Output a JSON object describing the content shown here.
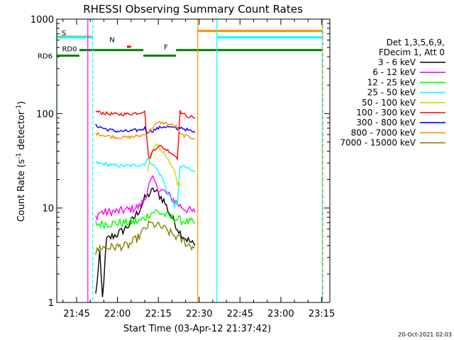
{
  "chart_data": {
    "type": "line",
    "title": "RHESSI Observing Summary Count Rates",
    "xlabel": "Start Time (03-Apr-12 21:37:42)",
    "ylabel": "Count Rate (s⁻¹ detector⁻¹)",
    "ylabel_parts": [
      "Count Rate (s",
      "-1",
      " detector",
      "-1",
      ")"
    ],
    "y_scale": "log",
    "ylim": [
      1,
      1000
    ],
    "y_ticks": [
      1,
      10,
      100,
      1000
    ],
    "y_tick_labels": [
      "1",
      "10",
      "100",
      "1000"
    ],
    "xlim_minutes_after_2140": [
      -2.3,
      98
    ],
    "x_ticks_minutes_after_2140": [
      5,
      20,
      35,
      50,
      65,
      80,
      95
    ],
    "x_tick_labels": [
      "21:45",
      "22:00",
      "22:15",
      "22:30",
      "22:45",
      "23:00",
      "23:15"
    ],
    "legend": {
      "position": "right",
      "header": [
        "Det 1,3,5,6,9,",
        "FDecim 1, Att 0"
      ]
    },
    "series": [
      {
        "name": "3 - 6 keV",
        "color": "#000000",
        "x": [
          12,
          13.5,
          14.5,
          16,
          18,
          20,
          22,
          24,
          26,
          28,
          30,
          32,
          33.5,
          35,
          37,
          39,
          41,
          43,
          45,
          47,
          48.5
        ],
        "y": [
          1.2,
          3.2,
          1.1,
          4.6,
          5.0,
          5.3,
          5.8,
          6.5,
          7.8,
          9.5,
          12.5,
          14.5,
          15.5,
          14.0,
          12.0,
          9.0,
          7.0,
          5.5,
          4.8,
          4.3,
          4.0
        ]
      },
      {
        "name": "6 - 12 keV",
        "color": "#ff00ff",
        "x": [
          12,
          13.5,
          16,
          20,
          24,
          28,
          30,
          31.5,
          33,
          35,
          37,
          39,
          41,
          43,
          45,
          47,
          48.5
        ],
        "y": [
          8.0,
          9.0,
          9.0,
          9.2,
          9.6,
          10.3,
          12.5,
          17.0,
          21.0,
          16.0,
          15.0,
          13.5,
          12.0,
          10.5,
          9.8,
          9.3,
          9.0
        ]
      },
      {
        "name": "12 - 25 keV",
        "color": "#00ff00",
        "x": [
          12,
          16,
          20,
          24,
          28,
          30,
          32,
          34,
          36,
          38,
          40,
          42,
          44,
          46,
          48.5
        ],
        "y": [
          6.8,
          6.8,
          6.9,
          7.0,
          7.2,
          7.8,
          8.8,
          9.2,
          8.8,
          8.3,
          7.9,
          7.6,
          7.3,
          7.1,
          7.0
        ]
      },
      {
        "name": "25 - 50 keV",
        "color": "#00ffff",
        "x": [
          12,
          16,
          20,
          24,
          28,
          30,
          31,
          32.5,
          34,
          36,
          38,
          40,
          42,
          43,
          45,
          47,
          48.5
        ],
        "y": [
          30,
          29,
          28,
          28,
          28.5,
          29.5,
          33,
          30,
          27,
          22,
          16,
          12,
          10,
          28,
          27,
          25,
          24
        ]
      },
      {
        "name": "50 - 100 keV",
        "color": "#e0d000",
        "x": [
          31,
          32,
          33,
          34,
          35,
          37,
          39,
          41,
          42,
          43
        ],
        "y": [
          24,
          32,
          42,
          48,
          45,
          38,
          30,
          24,
          19,
          17
        ]
      },
      {
        "name": "100 - 300 keV",
        "color": "#ff0000",
        "x": [
          12,
          16,
          20,
          24,
          28,
          30,
          30.5,
          31.5,
          33,
          35,
          37,
          39,
          41,
          42,
          43,
          45,
          47,
          48.5
        ],
        "y": [
          105,
          100,
          98,
          99,
          102,
          108,
          68,
          33,
          40,
          46,
          43,
          40,
          36,
          34,
          105,
          95,
          92,
          90
        ]
      },
      {
        "name": "300 - 800 keV",
        "color": "#0000ff",
        "x": [
          12,
          16,
          20,
          24,
          28,
          30,
          31,
          33,
          35,
          37,
          39,
          41,
          42,
          43,
          45,
          47,
          48.5
        ],
        "y": [
          75,
          68,
          65,
          65,
          67,
          70,
          64,
          66,
          70,
          73,
          72,
          70,
          68,
          72,
          68,
          65,
          63
        ]
      },
      {
        "name": "800 - 7000 keV",
        "color": "#ff8c00",
        "x": [
          12,
          16,
          20,
          24,
          28,
          30,
          31,
          33,
          35,
          37,
          39,
          41,
          42,
          43,
          45,
          47,
          48.5
        ],
        "y": [
          62,
          58,
          56,
          56,
          58,
          60,
          62,
          72,
          80,
          80,
          77,
          74,
          72,
          60,
          58,
          56,
          55
        ]
      },
      {
        "name": "7000 - 15000 keV",
        "color": "#808000",
        "x": [
          12,
          13.5,
          16,
          20,
          24,
          28,
          30,
          32,
          34,
          36,
          38,
          40,
          42,
          44,
          46,
          48.5
        ],
        "y": [
          3.3,
          3.8,
          3.8,
          3.9,
          4.0,
          5.0,
          6.0,
          6.8,
          6.6,
          6.3,
          5.8,
          5.3,
          4.9,
          4.5,
          4.1,
          3.8
        ]
      }
    ],
    "state_bars": [
      {
        "label": "S",
        "color": "#ff8c00",
        "y": 650,
        "segments": [
          [
            -2.3,
            11.0
          ]
        ]
      },
      {
        "label": "",
        "color": "#ff8c00",
        "y": 750,
        "segments": [
          [
            49.5,
            95.2
          ]
        ]
      },
      {
        "label": "",
        "color": "#00ffff",
        "y": 640,
        "segments": [
          [
            -2.3,
            11.0
          ],
          [
            56.5,
            95.2
          ]
        ]
      },
      {
        "label": "N",
        "color": "#00ffff",
        "y": 610,
        "segments": []
      },
      {
        "label": "F",
        "color": "#ff0000",
        "y": 510,
        "segments": [
          [
            23.5,
            25.0
          ]
        ]
      },
      {
        "label": "RD0",
        "color": "#008000",
        "y": 470,
        "segments": [
          [
            6.0,
            29.5
          ],
          [
            41.5,
            95.2
          ]
        ]
      },
      {
        "label": "RD6",
        "color": "#008000",
        "y": 410,
        "segments": [
          [
            -2.3,
            6.0
          ],
          [
            29.5,
            41.5
          ]
        ]
      }
    ],
    "vertical_lines": [
      {
        "x": -2.3,
        "color": "#00ffff",
        "style": "solid"
      },
      {
        "x": 10.9,
        "color": "#00ffff",
        "style": "dashed"
      },
      {
        "x": 49.5,
        "color": "#ff8c00",
        "style": "solid"
      },
      {
        "x": 56.5,
        "color": "#00ffff",
        "style": "solid"
      },
      {
        "x": 95.2,
        "color": "#00ffff",
        "style": "solid"
      },
      {
        "x": 95.4,
        "color": "#ff8c00",
        "style": "dashed"
      },
      {
        "x": 9.1,
        "color": "#ff00ff",
        "style": "solid"
      }
    ]
  },
  "footer": {
    "date_stamp": "20-Oct-2021 02:03"
  }
}
